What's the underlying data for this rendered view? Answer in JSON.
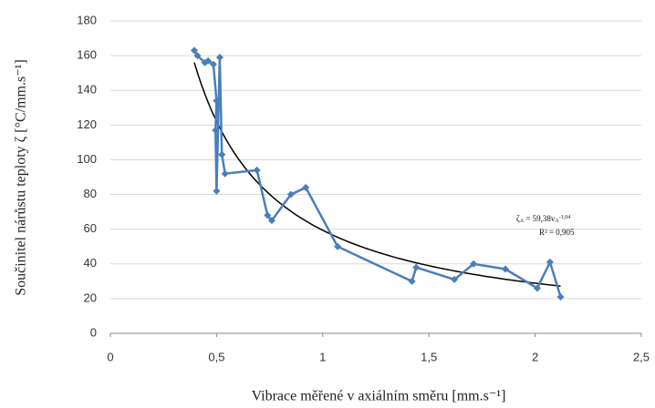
{
  "chart_data": {
    "type": "line",
    "xlabel": "Vibrace měřené v axiálním směru [mm.s⁻¹]",
    "ylabel": "Součinitel nárůstu teploty ζ [°C/mm.s⁻¹]",
    "x": [
      0.395,
      0.41,
      0.445,
      0.46,
      0.485,
      0.5,
      0.495,
      0.5,
      0.515,
      0.525,
      0.54,
      0.69,
      0.74,
      0.76,
      0.85,
      0.92,
      1.07,
      1.42,
      1.44,
      1.62,
      1.71,
      1.86,
      2.01,
      2.07,
      2.12
    ],
    "series": [
      {
        "name": "ζ",
        "color": "#4a7ebb",
        "values": [
          163,
          160,
          156,
          157,
          155,
          134,
          117,
          82,
          159,
          103,
          92,
          94,
          68,
          65,
          80,
          84,
          50,
          30,
          38,
          31,
          40,
          37,
          26,
          41,
          21
        ]
      }
    ],
    "trendline": {
      "color": "#000000",
      "lhs": "ζ",
      "lhs_sub": "A",
      "eq": " = ",
      "variable": "v",
      "var_sub": "A",
      "coefficient": {
        "value": 59.38,
        "label": "59,38"
      },
      "exponent": {
        "value": -1.04,
        "label": "-1,04"
      },
      "r_squared_label": "R² = 0,905"
    },
    "xlim": [
      0,
      2.5
    ],
    "xticks": [
      0,
      {
        "value": 0.5,
        "label": "0,5"
      },
      1,
      {
        "value": 1.5,
        "label": "1,5"
      },
      2,
      {
        "value": 2.5,
        "label": "2,5"
      }
    ],
    "ylim": [
      0,
      180
    ],
    "yticks": [
      0,
      20,
      40,
      60,
      80,
      100,
      120,
      140,
      160,
      180
    ],
    "grid": true
  }
}
